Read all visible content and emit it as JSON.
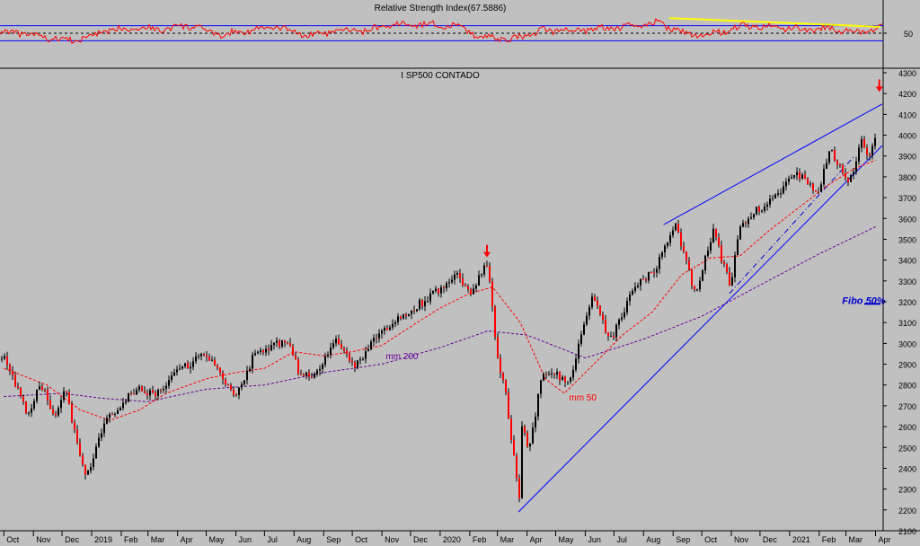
{
  "chart_data": [
    {
      "type": "line",
      "title": "Relative Strength Index(67.5886)",
      "ylim": [
        0,
        100
      ],
      "yticks": [
        50
      ],
      "reference_levels": [
        30,
        50,
        70
      ],
      "grid": false,
      "series": [
        {
          "color": "#ff0000",
          "x": [
            "2018-10",
            "2018-11",
            "2018-12",
            "2019-01",
            "2019-02",
            "2019-03",
            "2019-04",
            "2019-05",
            "2019-06",
            "2019-07",
            "2019-08",
            "2019-09",
            "2019-10",
            "2019-11",
            "2019-12",
            "2020-01",
            "2020-02",
            "2020-03",
            "2020-04",
            "2020-05",
            "2020-06",
            "2020-07",
            "2020-08",
            "2020-09",
            "2020-10",
            "2020-11",
            "2020-12",
            "2021-01",
            "2021-02",
            "2021-03",
            "2021-04"
          ],
          "values": [
            52,
            38,
            30,
            55,
            66,
            60,
            70,
            45,
            58,
            66,
            44,
            55,
            57,
            72,
            74,
            70,
            40,
            33,
            56,
            58,
            62,
            66,
            78,
            47,
            50,
            69,
            66,
            60,
            64,
            52,
            68
          ]
        },
        {
          "color": "#ffff00",
          "x": [
            "2020-08-28",
            "2021-04-06"
          ],
          "values": [
            90,
            67
          ]
        }
      ]
    },
    {
      "type": "line",
      "title": "I SP500 CONTADO",
      "ylim": [
        2100,
        4300
      ],
      "yticks": [
        2100,
        2200,
        2300,
        2400,
        2500,
        2600,
        2700,
        2800,
        2900,
        3000,
        3100,
        3200,
        3300,
        3400,
        3500,
        3600,
        3700,
        3800,
        3900,
        4000,
        4100,
        4200,
        4300
      ],
      "xticks": [
        "Oct",
        "Nov",
        "Dec",
        "2019",
        "Feb",
        "Mar",
        "Apr",
        "May",
        "Jun",
        "Jul",
        "Aug",
        "Sep",
        "Oct",
        "Nov",
        "Dec",
        "2020",
        "Feb",
        "Mar",
        "Apr",
        "May",
        "Jun",
        "Jul",
        "Aug",
        "Sep",
        "Oct",
        "Nov",
        "Dec",
        "2021",
        "Feb",
        "Mar",
        "Apr"
      ],
      "grid": false,
      "series": [
        {
          "name": "I SP500 CONTADO",
          "color": "#000000",
          "x": [
            "2018-10-01",
            "2018-10-25",
            "2018-11-08",
            "2018-11-23",
            "2018-12-03",
            "2018-12-24",
            "2019-01-15",
            "2019-02-15",
            "2019-03-08",
            "2019-04-01",
            "2019-04-30",
            "2019-05-31",
            "2019-06-20",
            "2019-07-26",
            "2019-08-05",
            "2019-08-23",
            "2019-09-12",
            "2019-10-02",
            "2019-10-28",
            "2019-11-27",
            "2019-12-20",
            "2020-01-17",
            "2020-01-31",
            "2020-02-19",
            "2020-02-28",
            "2020-03-09",
            "2020-03-23",
            "2020-03-26",
            "2020-04-01",
            "2020-04-17",
            "2020-05-14",
            "2020-06-08",
            "2020-06-26",
            "2020-07-21",
            "2020-08-14",
            "2020-09-02",
            "2020-09-23",
            "2020-10-12",
            "2020-10-30",
            "2020-11-09",
            "2020-11-27",
            "2020-12-18",
            "2021-01-08",
            "2021-01-29",
            "2021-02-12",
            "2021-03-04",
            "2021-03-16",
            "2021-03-24",
            "2021-04-05"
          ],
          "values": [
            2925,
            2660,
            2810,
            2630,
            2790,
            2350,
            2620,
            2780,
            2750,
            2870,
            2950,
            2750,
            2950,
            3020,
            2845,
            2850,
            3010,
            2890,
            3040,
            3150,
            3220,
            3330,
            3230,
            3390,
            2950,
            2750,
            2240,
            2630,
            2470,
            2870,
            2820,
            3230,
            3010,
            3260,
            3370,
            3580,
            3240,
            3540,
            3270,
            3550,
            3640,
            3710,
            3820,
            3720,
            3930,
            3770,
            3970,
            3880,
            4080
          ]
        },
        {
          "name": "mm 50",
          "color": "#ff0000",
          "x": [
            "2018-10-01",
            "2018-11-15",
            "2018-12-20",
            "2019-01-20",
            "2019-02-20",
            "2019-03-20",
            "2019-05-01",
            "2019-06-01",
            "2019-07-01",
            "2019-08-01",
            "2019-09-01",
            "2019-10-01",
            "2019-11-01",
            "2019-12-01",
            "2020-01-01",
            "2020-02-01",
            "2020-02-25",
            "2020-03-25",
            "2020-04-20",
            "2020-05-10",
            "2020-06-10",
            "2020-07-10",
            "2020-08-10",
            "2020-09-10",
            "2020-10-10",
            "2020-11-10",
            "2020-12-10",
            "2021-01-10",
            "2021-02-10",
            "2021-03-10",
            "2021-04-01"
          ],
          "values": [
            2880,
            2800,
            2680,
            2630,
            2680,
            2760,
            2830,
            2860,
            2880,
            2960,
            2940,
            2960,
            2990,
            3080,
            3170,
            3240,
            3270,
            3100,
            2830,
            2760,
            2900,
            3040,
            3150,
            3330,
            3410,
            3420,
            3540,
            3650,
            3760,
            3840,
            3880
          ]
        },
        {
          "name": "mm 200",
          "color": "#660099",
          "x": [
            "2018-10-01",
            "2018-12-01",
            "2019-01-15",
            "2019-03-01",
            "2019-05-01",
            "2019-07-01",
            "2019-09-01",
            "2019-11-01",
            "2020-01-01",
            "2020-02-20",
            "2020-04-01",
            "2020-06-01",
            "2020-08-01",
            "2020-10-01",
            "2020-12-01",
            "2021-02-01",
            "2021-04-01"
          ],
          "values": [
            2745,
            2760,
            2735,
            2720,
            2780,
            2800,
            2860,
            2900,
            2980,
            3060,
            3040,
            2930,
            3020,
            3130,
            3280,
            3430,
            3560
          ]
        }
      ],
      "annotations": [
        {
          "text": "mm 200",
          "x": "2019-11-05",
          "y": 2925,
          "color": "#660099"
        },
        {
          "text": "mm 50",
          "x": "2020-05-15",
          "y": 2725,
          "color": "#ff0000"
        },
        {
          "text": "Fibo 50%",
          "x": "2021-02-25",
          "y": 3190,
          "color": "#0000cc"
        }
      ],
      "trendlines": [
        {
          "color": "#0000ff",
          "from": {
            "x": "2020-03-23",
            "y": 2190
          },
          "to": {
            "x": "2021-04-08",
            "y": 3950
          }
        },
        {
          "color": "#0000ff",
          "from": {
            "x": "2020-08-22",
            "y": 3570
          },
          "to": {
            "x": "2021-04-08",
            "y": 4150
          }
        },
        {
          "color": "#0000cc",
          "style": "dash-dot",
          "from": {
            "x": "2020-10-30",
            "y": 3240
          },
          "to": {
            "x": "2021-03-10",
            "y": 3900
          }
        }
      ],
      "fibo_level": {
        "label": "Fibo 50%",
        "value": 3190
      },
      "peak_markers": [
        {
          "x": "2020-02-19",
          "y": 3430
        },
        {
          "x": "2021-04-05",
          "y": 4225
        }
      ]
    }
  ]
}
